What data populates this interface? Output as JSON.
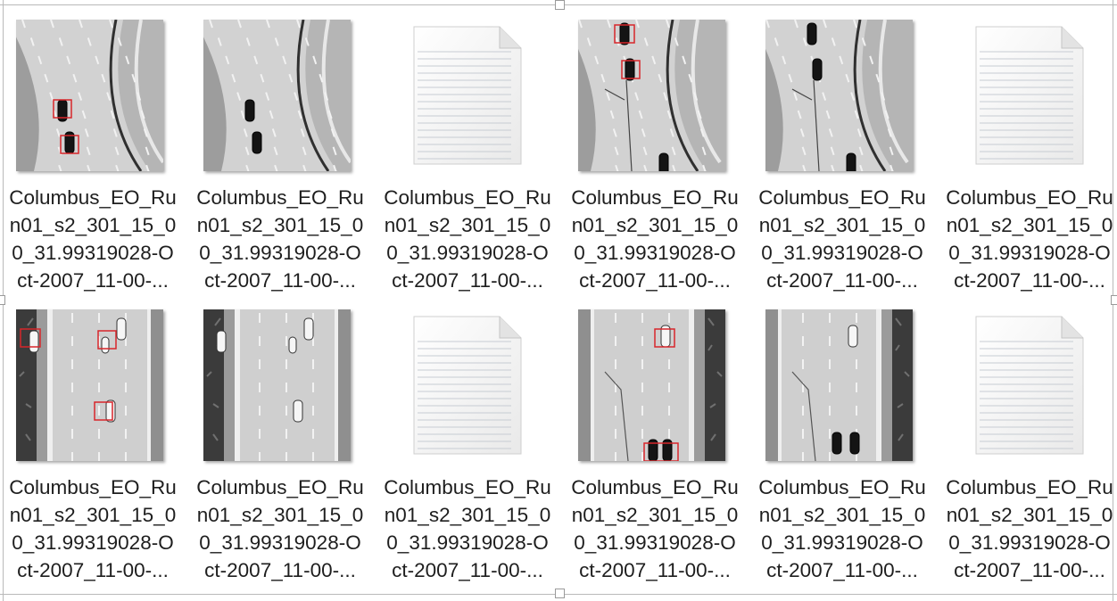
{
  "files": [
    {
      "kind": "image",
      "variant": "curve-boxed",
      "name_lines": [
        "Columbus_EO_Ru",
        "n01_s2_301_15_0",
        "0_31.99319028-O",
        "ct-2007_11-00-..."
      ]
    },
    {
      "kind": "image",
      "variant": "curve-plain",
      "name_lines": [
        "Columbus_EO_Ru",
        "n01_s2_301_15_0",
        "0_31.99319028-O",
        "ct-2007_11-00-..."
      ]
    },
    {
      "kind": "text",
      "variant": "doc",
      "name_lines": [
        "Columbus_EO_Ru",
        "n01_s2_301_15_0",
        "0_31.99319028-O",
        "ct-2007_11-00-..."
      ]
    },
    {
      "kind": "image",
      "variant": "curve2-boxed",
      "name_lines": [
        "Columbus_EO_Ru",
        "n01_s2_301_15_0",
        "0_31.99319028-O",
        "ct-2007_11-00-..."
      ]
    },
    {
      "kind": "image",
      "variant": "curve2-plain",
      "name_lines": [
        "Columbus_EO_Ru",
        "n01_s2_301_15_0",
        "0_31.99319028-O",
        "ct-2007_11-00-..."
      ]
    },
    {
      "kind": "text",
      "variant": "doc",
      "name_lines": [
        "Columbus_EO_Ru",
        "n01_s2_301_15_0",
        "0_31.99319028-O",
        "ct-2007_11-00-..."
      ]
    },
    {
      "kind": "image",
      "variant": "straight-boxed",
      "name_lines": [
        "Columbus_EO_Ru",
        "n01_s2_301_15_0",
        "0_31.99319028-O",
        "ct-2007_11-00-..."
      ]
    },
    {
      "kind": "image",
      "variant": "straight-plain",
      "name_lines": [
        "Columbus_EO_Ru",
        "n01_s2_301_15_0",
        "0_31.99319028-O",
        "ct-2007_11-00-..."
      ]
    },
    {
      "kind": "text",
      "variant": "doc",
      "name_lines": [
        "Columbus_EO_Ru",
        "n01_s2_301_15_0",
        "0_31.99319028-O",
        "ct-2007_11-00-..."
      ]
    },
    {
      "kind": "image",
      "variant": "straight2-boxed",
      "name_lines": [
        "Columbus_EO_Ru",
        "n01_s2_301_15_0",
        "0_31.99319028-O",
        "ct-2007_11-00-..."
      ]
    },
    {
      "kind": "image",
      "variant": "straight2-plain",
      "name_lines": [
        "Columbus_EO_Ru",
        "n01_s2_301_15_0",
        "0_31.99319028-O",
        "ct-2007_11-00-..."
      ]
    },
    {
      "kind": "text",
      "variant": "doc",
      "name_lines": [
        "Columbus_EO_Ru",
        "n01_s2_301_15_0",
        "0_31.99319028-O",
        "ct-2007_11-00-..."
      ]
    }
  ],
  "colors": {
    "detection_box": "#d8262b",
    "road": "#c9c9c9",
    "verge": "#8d8d8d",
    "doc_page": "#f5f5f5",
    "doc_lines": "#c7ccd3"
  },
  "icons": {
    "image": "aerial-image-thumbnail-icon",
    "text": "text-document-icon"
  }
}
